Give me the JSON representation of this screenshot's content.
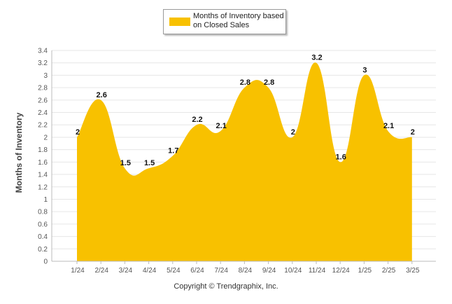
{
  "chart_data": {
    "type": "area",
    "categories": [
      "1/24",
      "2/24",
      "3/24",
      "4/24",
      "5/24",
      "6/24",
      "7/24",
      "8/24",
      "9/24",
      "10/24",
      "11/24",
      "12/24",
      "1/25",
      "2/25",
      "3/25"
    ],
    "series": [
      {
        "name": "Months of Inventory based on Closed Sales",
        "values": [
          2,
          2.6,
          1.5,
          1.5,
          1.7,
          2.2,
          2.1,
          2.8,
          2.8,
          2,
          3.2,
          1.6,
          3,
          2.1,
          2
        ],
        "color": "#f8c100"
      }
    ],
    "ylabel": "Months of Inventory",
    "xlabel": "",
    "ylim": [
      0,
      3.4
    ],
    "yticks": [
      "0",
      "0.2",
      "0.4",
      "0.6",
      "0.8",
      "1",
      "1.2",
      "1.4",
      "1.6",
      "1.8",
      "2",
      "2.2",
      "2.4",
      "2.6",
      "2.8",
      "3",
      "3.2",
      "3.4"
    ],
    "data_labels": [
      "2",
      "2.6",
      "1.5",
      "1.5",
      "1.7",
      "2.2",
      "2.1",
      "2.8",
      "2.8",
      "2",
      "3.2",
      "1.6",
      "3",
      "2.1",
      "2"
    ],
    "grid": true,
    "legend_position": "top-center"
  },
  "legend": {
    "label_line1": "Months of Inventory based",
    "label_line2": "on Closed Sales"
  },
  "footer": {
    "copyright": "Copyright © Trendgraphix, Inc."
  }
}
